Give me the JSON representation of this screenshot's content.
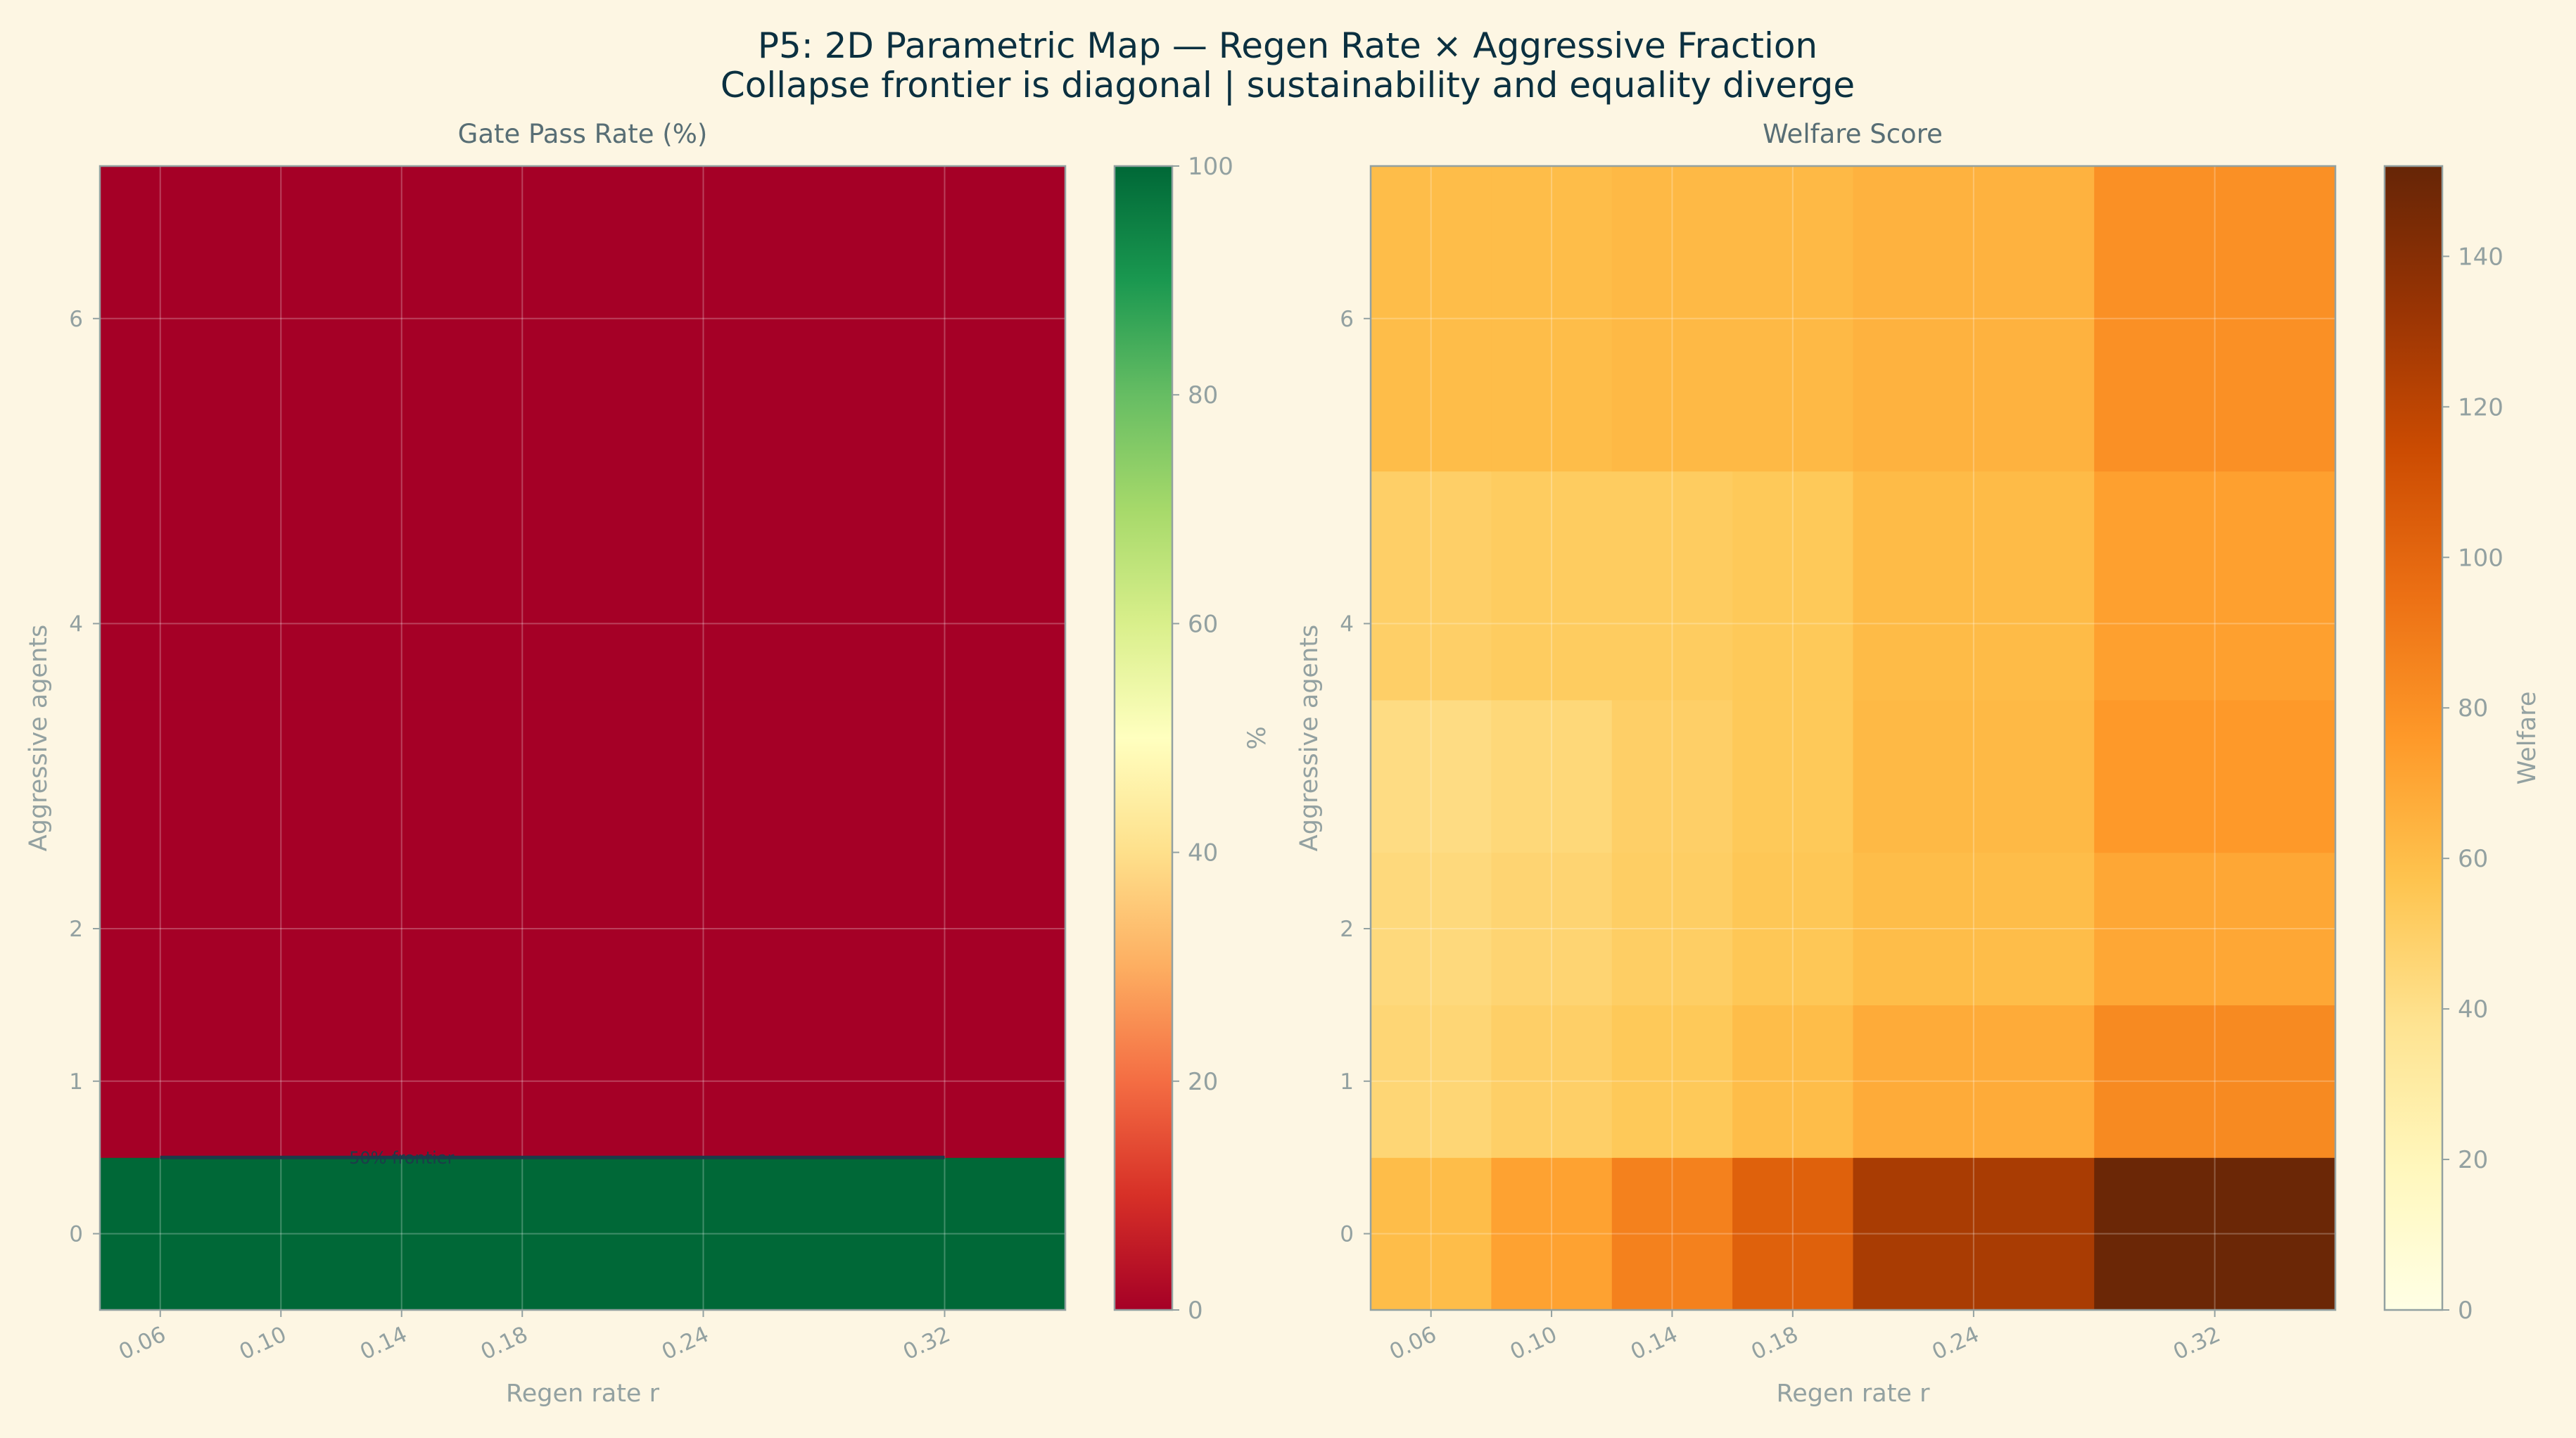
{
  "figure": {
    "title_line1": "P5: 2D Parametric Map — Regen Rate × Aggressive Fraction",
    "title_line2": "Collapse frontier is diagonal  |  sustainability and equality diverge"
  },
  "colors": {
    "background": "#fdf6e3",
    "title": "#0b3040",
    "muted_text": "#93a1a1",
    "pass_low": "#a50026",
    "pass_high": "#006837",
    "welfare_low": "#fffde6",
    "welfare_high": "#662506"
  },
  "chart_data": [
    {
      "type": "heatmap",
      "title": "Gate Pass Rate (%)",
      "xlabel": "Regen rate r",
      "ylabel": "Aggressive agents",
      "colorbar_label": "%",
      "colormap": "RdYlGn",
      "x": [
        0.06,
        0.1,
        0.14,
        0.18,
        0.24,
        0.32
      ],
      "x_tick_labels": [
        "0.06",
        "0.10",
        "0.14",
        "0.18",
        "0.24",
        "0.32"
      ],
      "x_cell_edges": [
        0.04,
        0.08,
        0.12,
        0.16,
        0.2,
        0.28,
        0.36
      ],
      "y": [
        0,
        1,
        2,
        3,
        4,
        6
      ],
      "y_tick_labels": [
        "0",
        "1",
        "2",
        "4",
        "6"
      ],
      "y_tick_values": [
        0,
        1,
        2,
        4,
        6
      ],
      "y_cell_edges": [
        -0.5,
        0.5,
        1.5,
        2.5,
        3.5,
        5.0,
        7.0
      ],
      "xlim": [
        0.04,
        0.36
      ],
      "ylim": [
        -0.5,
        7.0
      ],
      "values": [
        [
          100,
          100,
          100,
          100,
          100,
          100
        ],
        [
          0,
          0,
          0,
          0,
          0,
          0
        ],
        [
          0,
          0,
          0,
          0,
          0,
          0
        ],
        [
          0,
          0,
          0,
          0,
          0,
          0
        ],
        [
          0,
          0,
          0,
          0,
          0,
          0
        ],
        [
          0,
          0,
          0,
          0,
          0,
          0
        ]
      ],
      "value_range": [
        0,
        100
      ],
      "colorbar_ticks": [
        "0",
        "20",
        "40",
        "60",
        "80",
        "100"
      ],
      "colorbar_tick_values": [
        0,
        20,
        40,
        60,
        80,
        100
      ],
      "contour": {
        "level": 50,
        "label": "50% frontier",
        "y": 0.5,
        "x_range": [
          0.06,
          0.32
        ]
      },
      "grid": true
    },
    {
      "type": "heatmap",
      "title": "Welfare Score",
      "xlabel": "Regen rate r",
      "ylabel": "Aggressive agents",
      "colorbar_label": "Welfare",
      "colormap": "YlOrBr",
      "x": [
        0.06,
        0.1,
        0.14,
        0.18,
        0.24,
        0.32
      ],
      "x_tick_labels": [
        "0.06",
        "0.10",
        "0.14",
        "0.18",
        "0.24",
        "0.32"
      ],
      "x_cell_edges": [
        0.04,
        0.08,
        0.12,
        0.16,
        0.2,
        0.28,
        0.36
      ],
      "y": [
        0,
        1,
        2,
        3,
        4,
        6
      ],
      "y_tick_labels": [
        "0",
        "1",
        "2",
        "4",
        "6"
      ],
      "y_tick_values": [
        0,
        1,
        2,
        4,
        6
      ],
      "y_cell_edges": [
        -0.5,
        0.5,
        1.5,
        2.5,
        3.5,
        5.0,
        7.0
      ],
      "xlim": [
        0.04,
        0.36
      ],
      "ylim": [
        -0.5,
        7.0
      ],
      "values": [
        [
          60,
          72,
          87,
          103,
          127,
          150
        ],
        [
          46,
          50,
          54,
          60,
          68,
          83
        ],
        [
          44,
          47,
          51,
          55,
          60,
          70
        ],
        [
          42,
          45,
          50,
          54,
          62,
          76
        ],
        [
          50,
          52,
          52,
          54,
          61,
          73
        ],
        [
          60,
          60,
          62,
          62,
          65,
          80
        ]
      ],
      "value_range": [
        0,
        152
      ],
      "colorbar_ticks": [
        "0",
        "20",
        "40",
        "60",
        "80",
        "100",
        "120",
        "140"
      ],
      "colorbar_tick_values": [
        0,
        20,
        40,
        60,
        80,
        100,
        120,
        140
      ],
      "grid": true
    }
  ]
}
